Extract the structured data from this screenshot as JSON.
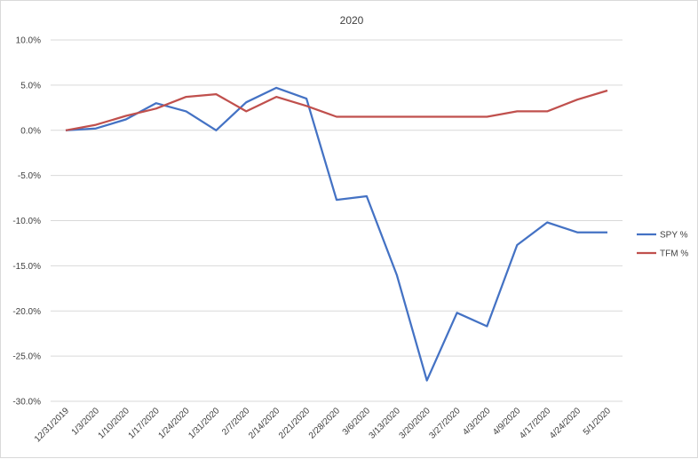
{
  "chart_data": {
    "type": "line",
    "title": "2020",
    "xlabel": "",
    "ylabel": "",
    "ylim": [
      -0.3,
      0.1
    ],
    "ytick_step": 0.05,
    "y_format": "percent_1dp",
    "grid": true,
    "legend_position": "right",
    "x": [
      "12/31/2019",
      "1/3/2020",
      "1/10/2020",
      "1/17/2020",
      "1/24/2020",
      "1/31/2020",
      "2/7/2020",
      "2/14/2020",
      "2/21/2020",
      "2/28/2020",
      "3/6/2020",
      "3/13/2020",
      "3/20/2020",
      "3/27/2020",
      "4/3/2020",
      "4/9/2020",
      "4/17/2020",
      "4/24/2020",
      "5/1/2020"
    ],
    "series": [
      {
        "name": "SPY %",
        "color": "#4472c4",
        "values": [
          0.0,
          0.002,
          0.012,
          0.03,
          0.021,
          0.0,
          0.031,
          0.047,
          0.035,
          -0.077,
          -0.073,
          -0.16,
          -0.277,
          -0.202,
          -0.217,
          -0.127,
          -0.102,
          -0.113,
          -0.113
        ]
      },
      {
        "name": "TFM %",
        "color": "#c0504d",
        "values": [
          0.0,
          0.006,
          0.016,
          0.024,
          0.037,
          0.04,
          0.021,
          0.037,
          0.027,
          0.015,
          0.015,
          0.015,
          0.015,
          0.015,
          0.015,
          0.021,
          0.021,
          0.034,
          0.044
        ]
      }
    ]
  }
}
